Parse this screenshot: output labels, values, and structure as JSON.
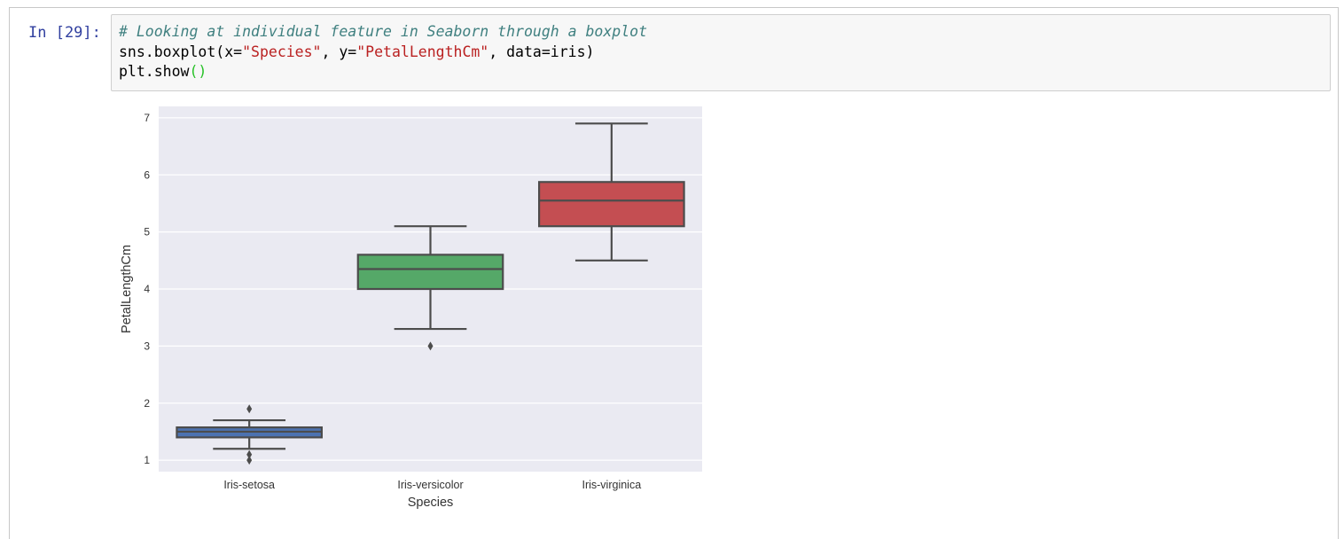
{
  "cell": {
    "prompt": "In [29]:",
    "code": {
      "line1_comment": "# Looking at individual feature in Seaborn through a boxplot",
      "line2_a": "sns.boxplot(x=",
      "line2_str1": "\"Species\"",
      "line2_b": ", y=",
      "line2_str2": "\"PetalLengthCm\"",
      "line2_c": ", data=iris)",
      "line3_a": "plt.show",
      "line3_paren": "()"
    }
  },
  "colors": {
    "plot_bg": "#eaeaf2",
    "grid": "#ffffff",
    "line": "#4c4c4c",
    "series": [
      "#4c72b0",
      "#55a868",
      "#c44e52"
    ]
  },
  "chart_data": {
    "type": "boxplot",
    "xlabel": "Species",
    "ylabel": "PetalLengthCm",
    "ylim": [
      0.8,
      7.2
    ],
    "yticks": [
      1,
      2,
      3,
      4,
      5,
      6,
      7
    ],
    "grid": true,
    "categories": [
      "Iris-setosa",
      "Iris-versicolor",
      "Iris-virginica"
    ],
    "boxes": [
      {
        "category": "Iris-setosa",
        "whisker_low": 1.2,
        "q1": 1.4,
        "median": 1.5,
        "q3": 1.575,
        "whisker_high": 1.7,
        "outliers": [
          1.0,
          1.1,
          1.9
        ]
      },
      {
        "category": "Iris-versicolor",
        "whisker_low": 3.3,
        "q1": 4.0,
        "median": 4.35,
        "q3": 4.6,
        "whisker_high": 5.1,
        "outliers": [
          3.0
        ]
      },
      {
        "category": "Iris-virginica",
        "whisker_low": 4.5,
        "q1": 5.1,
        "median": 5.55,
        "q3": 5.875,
        "whisker_high": 6.9,
        "outliers": []
      }
    ]
  }
}
